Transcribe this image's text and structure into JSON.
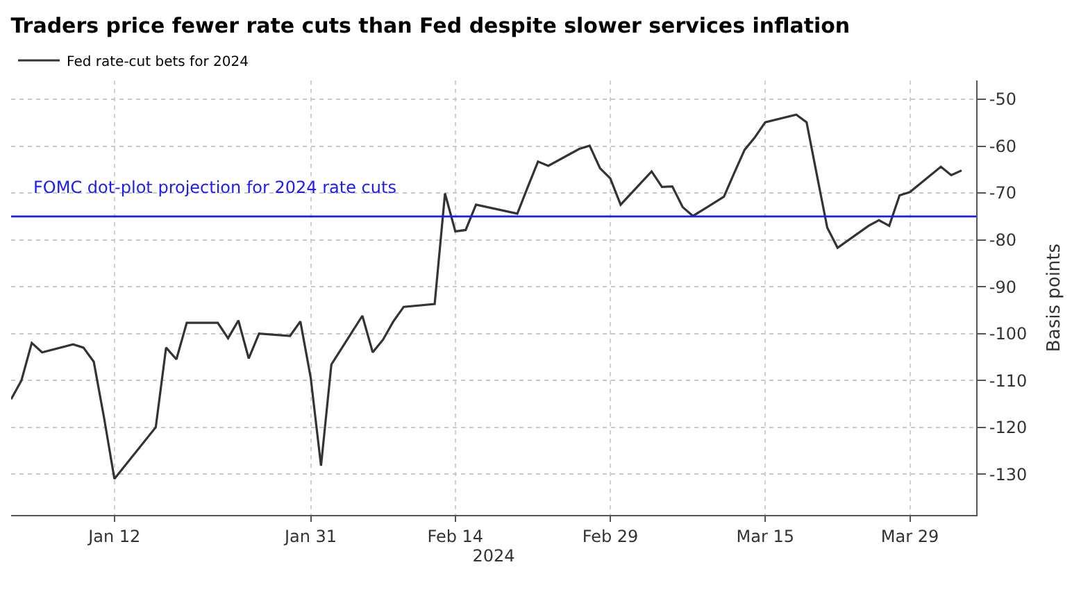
{
  "chart_data": {
    "type": "line",
    "title": "Traders price fewer rate cuts than Fed despite slower services inflation",
    "xlabel": "2024",
    "ylabel": "Basis points",
    "x": [
      "2024-01-02",
      "2024-01-03",
      "2024-01-04",
      "2024-01-05",
      "2024-01-08",
      "2024-01-09",
      "2024-01-10",
      "2024-01-11",
      "2024-01-12",
      "2024-01-16",
      "2024-01-17",
      "2024-01-18",
      "2024-01-19",
      "2024-01-22",
      "2024-01-23",
      "2024-01-24",
      "2024-01-25",
      "2024-01-26",
      "2024-01-29",
      "2024-01-30",
      "2024-01-31",
      "2024-02-01",
      "2024-02-02",
      "2024-02-05",
      "2024-02-06",
      "2024-02-07",
      "2024-02-08",
      "2024-02-09",
      "2024-02-12",
      "2024-02-13",
      "2024-02-14",
      "2024-02-15",
      "2024-02-16",
      "2024-02-20",
      "2024-02-21",
      "2024-02-22",
      "2024-02-23",
      "2024-02-26",
      "2024-02-27",
      "2024-02-28",
      "2024-02-29",
      "2024-03-01",
      "2024-03-04",
      "2024-03-05",
      "2024-03-06",
      "2024-03-07",
      "2024-03-08",
      "2024-03-11",
      "2024-03-12",
      "2024-03-13",
      "2024-03-14",
      "2024-03-15",
      "2024-03-18",
      "2024-03-19",
      "2024-03-20",
      "2024-03-21",
      "2024-03-22",
      "2024-03-25",
      "2024-03-26",
      "2024-03-27",
      "2024-03-28",
      "2024-03-29",
      "2024-04-01",
      "2024-04-02",
      "2024-04-03"
    ],
    "series": [
      {
        "name": "Fed rate-cut bets for 2024",
        "color": "#333333",
        "values": [
          -114,
          -110,
          -102,
          -104,
          -102.3,
          -103,
          -106,
          -118,
          -131,
          -120,
          -103,
          -105.5,
          -97.7,
          -97.7,
          -101,
          -97.2,
          -105.3,
          -100,
          -100.5,
          -97.4,
          -109.4,
          -128.2,
          -106.6,
          -96.2,
          -104,
          -101.3,
          -97.4,
          -94.3,
          -93.7,
          -70.1,
          -78.2,
          -77.9,
          -72.5,
          -74.4,
          -68.8,
          -63.3,
          -64.2,
          -60.6,
          -59.9,
          -64.7,
          -66.9,
          -72.5,
          -65.4,
          -68.7,
          -68.6,
          -73,
          -74.9,
          -70.8,
          -65.7,
          -60.8,
          -58.1,
          -54.9,
          -53.3,
          -54.9,
          -66.2,
          -77.4,
          -81.7,
          -77,
          -75.8,
          -77,
          -70.5,
          -69.8,
          -64.4,
          -66.2,
          -65.2
        ]
      }
    ],
    "xlim": [
      "2024-01-02",
      "2024-04-04T10:00"
    ],
    "xticks": [
      {
        "value": "2024-01-12",
        "label": "Jan 12"
      },
      {
        "value": "2024-01-31",
        "label": "Jan 31"
      },
      {
        "value": "2024-02-14",
        "label": "Feb 14"
      },
      {
        "value": "2024-02-29",
        "label": "Feb 29"
      },
      {
        "value": "2024-03-15",
        "label": "Mar 15"
      },
      {
        "value": "2024-03-29",
        "label": "Mar 29"
      }
    ],
    "ylim": [
      -138.7,
      -46
    ],
    "yticks": [
      -50,
      -60,
      -70,
      -80,
      -90,
      -100,
      -110,
      -120,
      -130
    ],
    "ref_lines": [
      {
        "axis": "y",
        "value": -75,
        "label": "FOMC dot-plot projection for 2024 rate cuts",
        "color": "#1a1aff"
      }
    ],
    "grid": true,
    "legend": "top left",
    "marker": "none",
    "line_style": "solid"
  }
}
